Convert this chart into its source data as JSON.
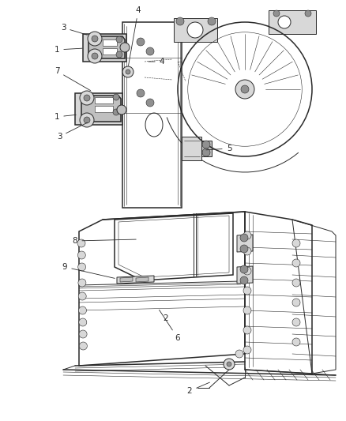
{
  "bg_color": "#ffffff",
  "fig_width": 4.38,
  "fig_height": 5.33,
  "dpi": 100,
  "lc": "#2a2a2a",
  "lw_main": 1.1,
  "lw_med": 0.7,
  "lw_thin": 0.4,
  "fs": 7.5,
  "gray_fill": "#d8d8d8",
  "mid_fill": "#c0c0c0",
  "dark_fill": "#909090"
}
